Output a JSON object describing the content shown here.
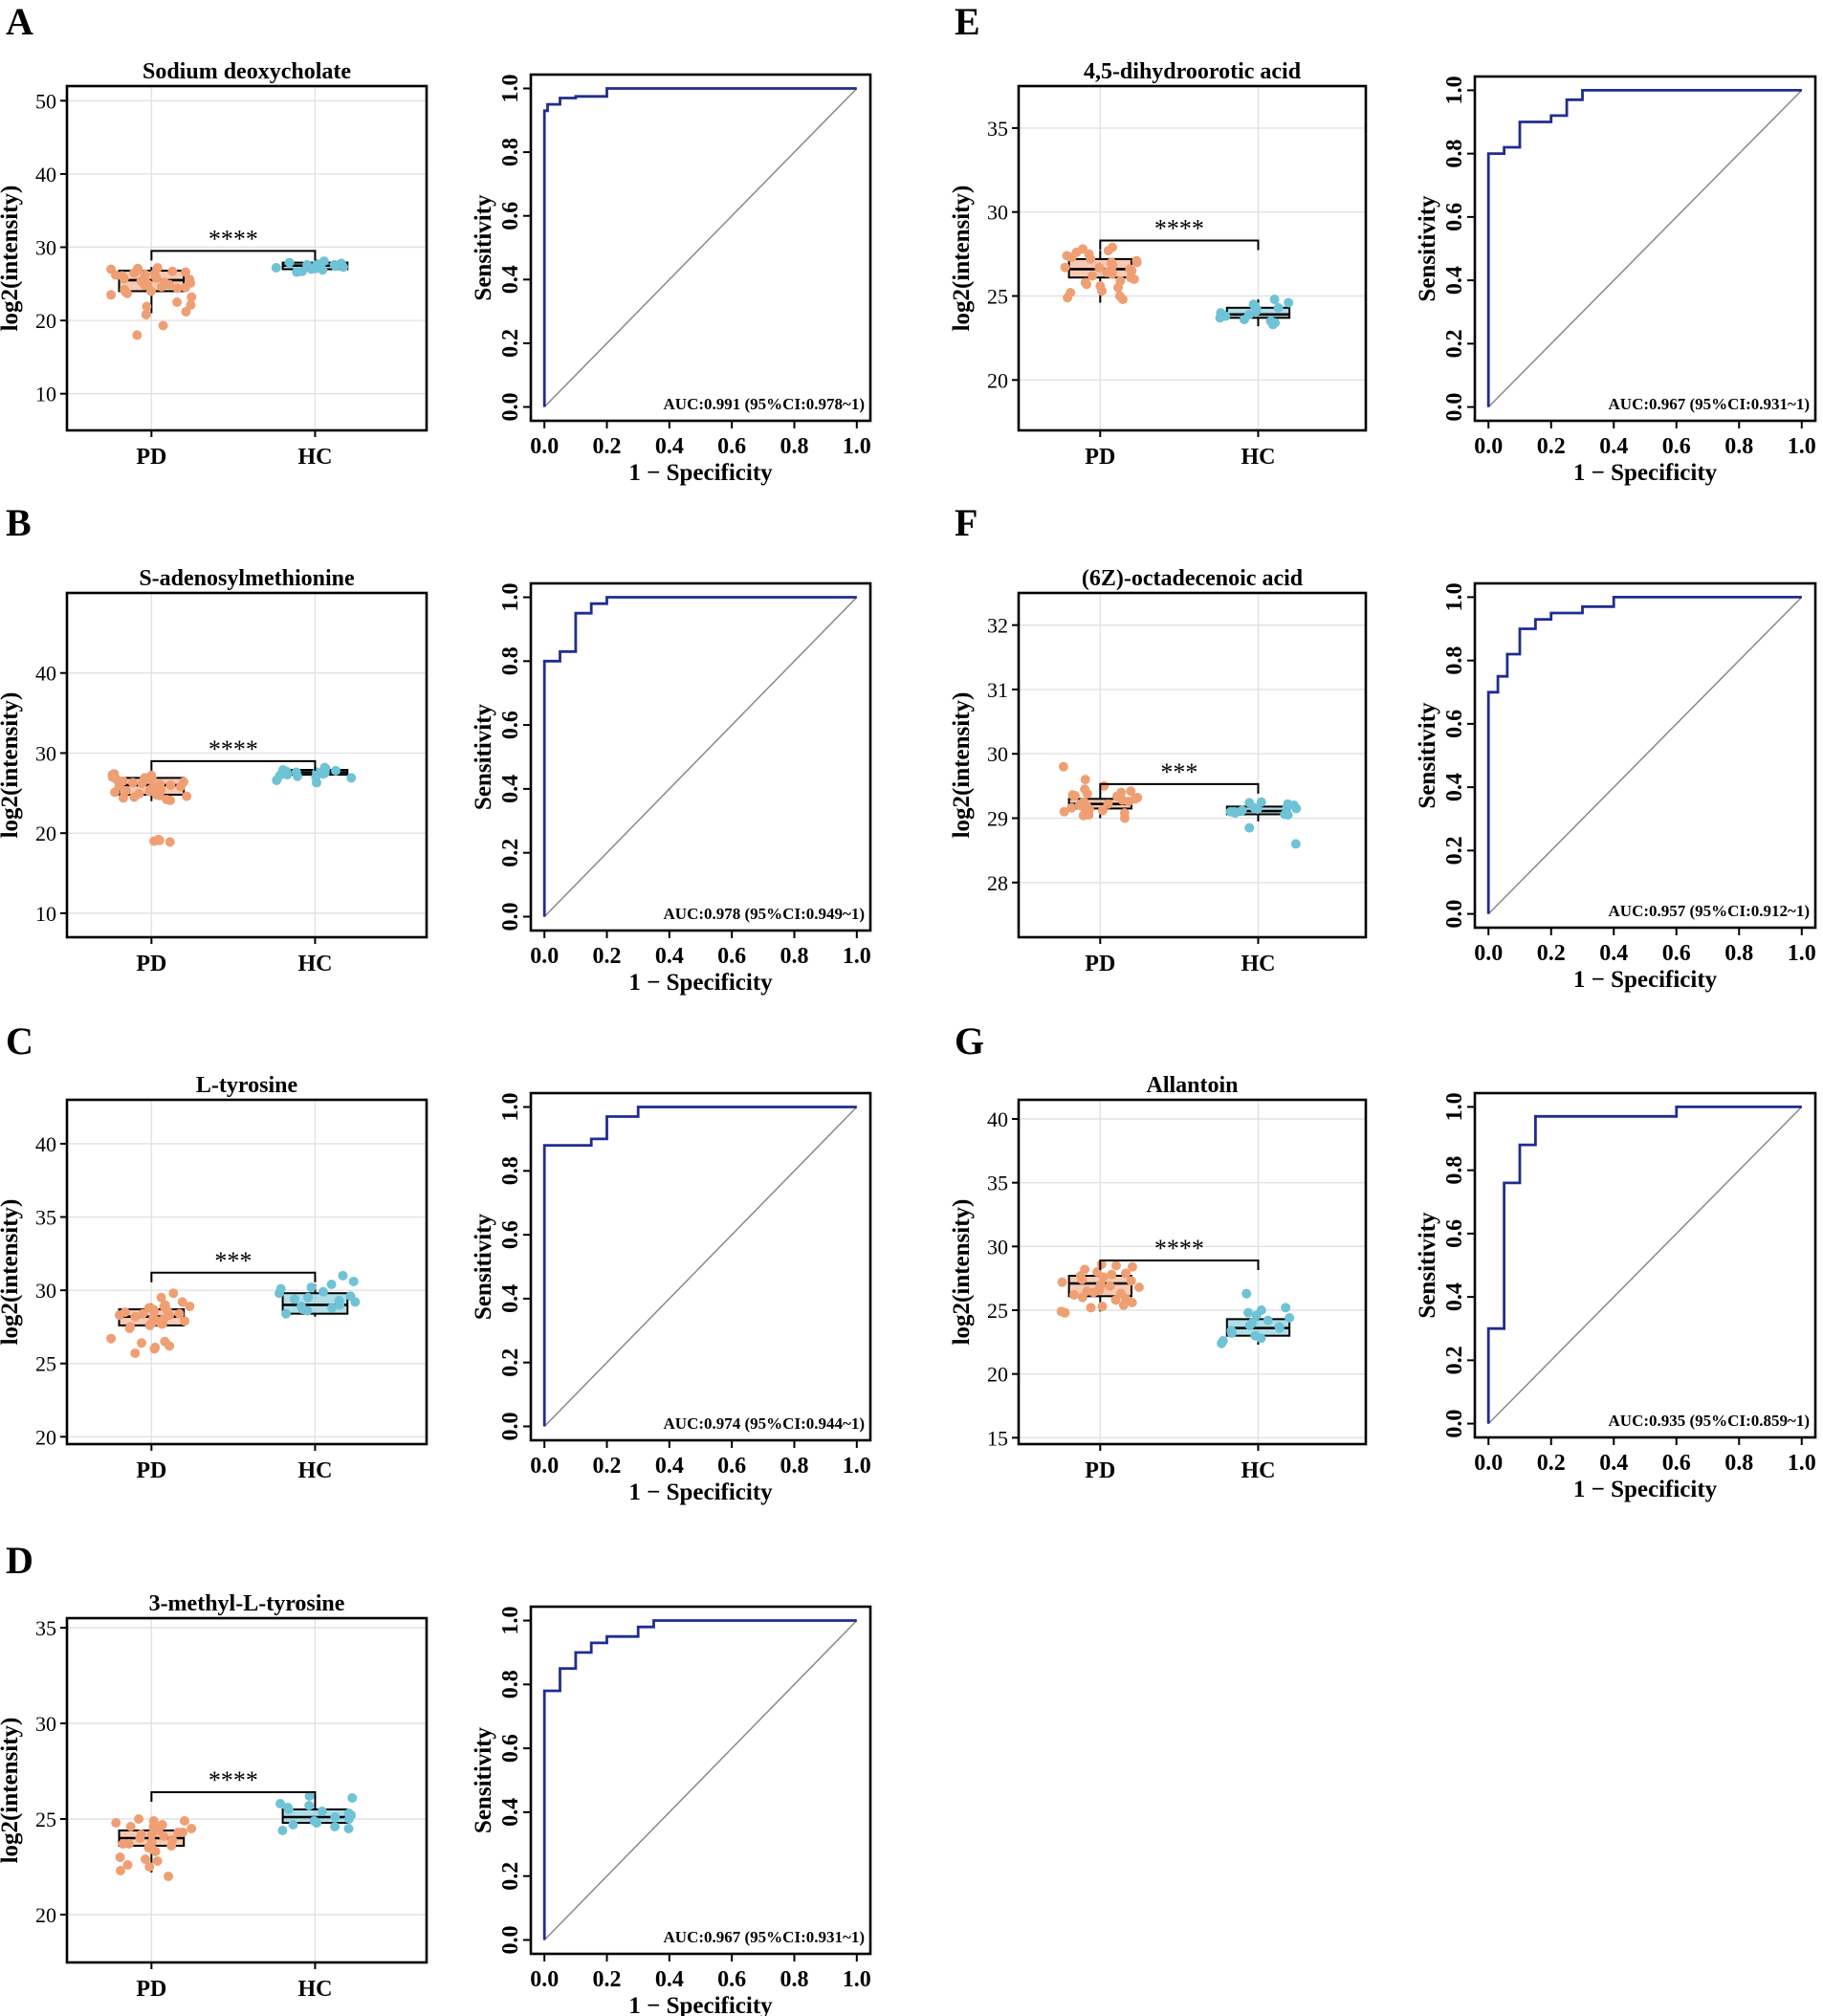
{
  "chart_data": [
    {
      "panel": "A",
      "type": "box",
      "title": "Sodium deoxycholate",
      "ylabel": "log2(intensity)",
      "categories": [
        "PD",
        "HC"
      ],
      "ylim": [
        5,
        52
      ],
      "yticks": [
        10,
        20,
        30,
        40,
        50
      ],
      "boxes": [
        {
          "group": "PD",
          "color": "#ef9f74",
          "q1": 24.0,
          "median": 25.5,
          "q3": 26.8,
          "whisker_low": 21.0,
          "whisker_high": 27.3,
          "points": [
            27.0,
            26.6,
            26.2,
            25.8,
            25.4,
            25.0,
            24.6,
            24.2,
            26.9,
            26.4,
            25.6,
            24.4,
            23.9,
            23.2,
            22.5,
            21.9,
            21.2,
            20.8,
            19.3,
            18.0,
            26.7,
            25.9,
            25.2,
            24.8,
            26.1,
            27.1,
            24.0,
            23.5,
            25.7,
            26.3,
            22.1,
            24.9,
            26.5,
            25.3,
            23.7,
            27.2,
            25.1,
            24.5
          ]
        },
        {
          "group": "HC",
          "color": "#6ec3d6",
          "q1": 27.0,
          "median": 27.5,
          "q3": 27.9,
          "whisker_low": 26.5,
          "whisker_high": 28.2,
          "points": [
            27.9,
            27.6,
            27.3,
            27.0,
            26.6,
            27.8,
            27.4,
            27.1,
            27.7,
            27.5,
            27.2,
            26.9,
            28.1,
            27.6,
            27.3,
            26.7
          ]
        }
      ],
      "bracket_y": 29.5,
      "significance": "****"
    },
    {
      "panel": "A",
      "type": "line",
      "subtype": "roc",
      "xlabel": "1 − Specificity",
      "ylabel": "Sensitivity",
      "xlim": [
        0,
        1
      ],
      "ylim": [
        0,
        1
      ],
      "ticks": [
        "0.0",
        "0.2",
        "0.4",
        "0.6",
        "0.8",
        "1.0"
      ],
      "x": [
        0,
        0,
        0.01,
        0.01,
        0.05,
        0.05,
        0.1,
        0.1,
        0.2,
        0.2,
        1
      ],
      "y": [
        0,
        0.93,
        0.93,
        0.95,
        0.95,
        0.97,
        0.97,
        0.975,
        0.975,
        1,
        1
      ],
      "auc_label": "AUC:0.991 (95%CI:0.978~1)"
    },
    {
      "panel": "B",
      "type": "box",
      "title": "S-adenosylmethionine",
      "ylabel": "log2(intensity)",
      "categories": [
        "PD",
        "HC"
      ],
      "ylim": [
        7,
        50
      ],
      "yticks": [
        10,
        20,
        30,
        40
      ],
      "boxes": [
        {
          "group": "PD",
          "color": "#ef9f74",
          "q1": 24.8,
          "median": 26.0,
          "q3": 26.9,
          "whisker_low": 24.0,
          "whisker_high": 27.5,
          "points": [
            27.2,
            26.8,
            26.4,
            26.0,
            25.6,
            25.2,
            24.8,
            24.4,
            26.9,
            26.3,
            25.5,
            24.6,
            27.4,
            25.9,
            25.1,
            24.2,
            26.6,
            25.3,
            24.9,
            27.0,
            26.1,
            25.7,
            24.1,
            26.5,
            25.0,
            19.2,
            19.0,
            19.1,
            18.9,
            26.7,
            25.4,
            27.3,
            24.5,
            26.2,
            25.8,
            24.7
          ]
        },
        {
          "group": "HC",
          "color": "#6ec3d6",
          "q1": 27.3,
          "median": 27.6,
          "q3": 27.9,
          "whisker_low": 27.0,
          "whisker_high": 28.3,
          "points": [
            28.2,
            27.9,
            27.6,
            27.3,
            27.0,
            27.8,
            27.5,
            27.2,
            26.6,
            26.3,
            27.7,
            27.4,
            28.1,
            27.1,
            27.6,
            26.9
          ]
        }
      ],
      "bracket_y": 29.0,
      "significance": "****"
    },
    {
      "panel": "B",
      "type": "line",
      "subtype": "roc",
      "xlabel": "1 − Specificity",
      "ylabel": "Sensitivity",
      "xlim": [
        0,
        1
      ],
      "ylim": [
        0,
        1
      ],
      "ticks": [
        "0.0",
        "0.2",
        "0.4",
        "0.6",
        "0.8",
        "1.0"
      ],
      "x": [
        0,
        0,
        0.05,
        0.05,
        0.1,
        0.1,
        0.15,
        0.15,
        0.2,
        0.2,
        1
      ],
      "y": [
        0,
        0.8,
        0.8,
        0.83,
        0.83,
        0.95,
        0.95,
        0.98,
        0.98,
        1,
        1
      ],
      "auc_label": "AUC:0.978 (95%CI:0.949~1)"
    },
    {
      "panel": "C",
      "type": "box",
      "title": "L-tyrosine",
      "ylabel": "log2(intensity)",
      "categories": [
        "PD",
        "HC"
      ],
      "ylim": [
        19.5,
        43
      ],
      "yticks": [
        20,
        25,
        30,
        35,
        40
      ],
      "boxes": [
        {
          "group": "PD",
          "color": "#ef9f74",
          "q1": 27.6,
          "median": 28.2,
          "q3": 28.7,
          "whisker_low": 27.3,
          "whisker_high": 29.1,
          "points": [
            29.0,
            28.7,
            28.4,
            28.1,
            27.8,
            27.5,
            28.9,
            28.5,
            28.2,
            27.9,
            27.6,
            28.8,
            28.3,
            27.7,
            29.2,
            28.0,
            27.4,
            28.6,
            29.8,
            29.5,
            28.9,
            26.7,
            26.4,
            26.2,
            26.0,
            25.7,
            26.5,
            26.1,
            28.4,
            27.9,
            28.6,
            27.7,
            28.3
          ]
        },
        {
          "group": "HC",
          "color": "#6ec3d6",
          "q1": 28.4,
          "median": 29.0,
          "q3": 29.8,
          "whisker_low": 28.2,
          "whisker_high": 30.4,
          "points": [
            30.6,
            30.2,
            29.9,
            29.6,
            29.3,
            29.0,
            28.7,
            28.4,
            30.4,
            29.8,
            29.2,
            28.8,
            31.0,
            29.5,
            28.6,
            30.1,
            29.4,
            28.9
          ]
        }
      ],
      "bracket_y": 31.2,
      "significance": "***"
    },
    {
      "panel": "C",
      "type": "line",
      "subtype": "roc",
      "xlabel": "1 − Specificity",
      "ylabel": "Sensitivity",
      "xlim": [
        0,
        1
      ],
      "ylim": [
        0,
        1
      ],
      "ticks": [
        "0.0",
        "0.2",
        "0.4",
        "0.6",
        "0.8",
        "1.0"
      ],
      "x": [
        0,
        0,
        0.15,
        0.15,
        0.2,
        0.2,
        0.3,
        0.3,
        1
      ],
      "y": [
        0,
        0.88,
        0.88,
        0.9,
        0.9,
        0.97,
        0.97,
        1,
        1
      ],
      "auc_label": "AUC:0.974 (95%CI:0.944~1)"
    },
    {
      "panel": "D",
      "type": "box",
      "title": "3-methyl-L-tyrosine",
      "ylabel": "log2(intensity)",
      "categories": [
        "PD",
        "HC"
      ],
      "ylim": [
        17.5,
        35.5
      ],
      "yticks": [
        20,
        25,
        30,
        35
      ],
      "boxes": [
        {
          "group": "PD",
          "color": "#ef9f74",
          "q1": 23.6,
          "median": 24.0,
          "q3": 24.4,
          "whisker_low": 22.2,
          "whisker_high": 24.9,
          "points": [
            24.9,
            24.6,
            24.3,
            24.0,
            23.7,
            23.4,
            24.8,
            24.5,
            24.2,
            23.9,
            23.6,
            24.7,
            24.1,
            23.8,
            25.0,
            24.4,
            23.5,
            24.6,
            23.3,
            22.9,
            22.6,
            22.3,
            22.0,
            22.8,
            22.5,
            23.0,
            24.2,
            23.7,
            24.9,
            24.3
          ]
        },
        {
          "group": "HC",
          "color": "#6ec3d6",
          "q1": 24.8,
          "median": 25.1,
          "q3": 25.5,
          "whisker_low": 24.6,
          "whisker_high": 25.9,
          "points": [
            26.2,
            25.8,
            25.5,
            25.2,
            24.9,
            24.6,
            24.4,
            25.6,
            25.3,
            25.0,
            24.7,
            26.1,
            25.4,
            24.5,
            25.1,
            25.7,
            24.8
          ]
        }
      ],
      "bracket_y": 26.4,
      "significance": "****"
    },
    {
      "panel": "D",
      "type": "line",
      "subtype": "roc",
      "xlabel": "1 − Specificity",
      "ylabel": "Sensitivity",
      "xlim": [
        0,
        1
      ],
      "ylim": [
        0,
        1
      ],
      "ticks": [
        "0.0",
        "0.2",
        "0.4",
        "0.6",
        "0.8",
        "1.0"
      ],
      "x": [
        0,
        0,
        0.05,
        0.05,
        0.1,
        0.1,
        0.15,
        0.15,
        0.2,
        0.2,
        0.3,
        0.3,
        0.35,
        0.35,
        1
      ],
      "y": [
        0,
        0.78,
        0.78,
        0.85,
        0.85,
        0.9,
        0.9,
        0.93,
        0.93,
        0.95,
        0.95,
        0.98,
        0.98,
        1,
        1
      ],
      "auc_label": "AUC:0.967 (95%CI:0.931~1)"
    },
    {
      "panel": "E",
      "type": "box",
      "title": "4,5-dihydroorotic acid",
      "ylabel": "log2(intensity)",
      "categories": [
        "PD",
        "HC"
      ],
      "ylim": [
        17,
        37.5
      ],
      "yticks": [
        20,
        25,
        30,
        35
      ],
      "boxes": [
        {
          "group": "PD",
          "color": "#ef9f74",
          "q1": 26.1,
          "median": 26.6,
          "q3": 27.2,
          "whisker_low": 24.6,
          "whisker_high": 27.7,
          "points": [
            27.9,
            27.6,
            27.3,
            27.0,
            26.7,
            26.4,
            26.1,
            25.8,
            25.5,
            27.8,
            27.2,
            26.6,
            26.0,
            25.3,
            24.8,
            27.4,
            26.8,
            26.2,
            25.6,
            25.0,
            27.1,
            26.5,
            25.9,
            24.9,
            27.5,
            26.3,
            25.7,
            26.9,
            27.7,
            25.2,
            26.7,
            27.0,
            26.4
          ]
        },
        {
          "group": "HC",
          "color": "#6ec3d6",
          "q1": 23.7,
          "median": 23.9,
          "q3": 24.3,
          "whisker_low": 23.2,
          "whisker_high": 24.8,
          "points": [
            24.8,
            24.5,
            24.2,
            23.9,
            23.6,
            23.3,
            24.4,
            24.1,
            23.8,
            23.5,
            24.6,
            23.7,
            24.0,
            23.4,
            24.3
          ]
        }
      ],
      "bracket_y": 28.3,
      "significance": "****"
    },
    {
      "panel": "E",
      "type": "line",
      "subtype": "roc",
      "xlabel": "1 − Specificity",
      "ylabel": "Sensitivity",
      "xlim": [
        0,
        1
      ],
      "ylim": [
        0,
        1
      ],
      "ticks": [
        "0.0",
        "0.2",
        "0.4",
        "0.6",
        "0.8",
        "1.0"
      ],
      "x": [
        0,
        0,
        0.05,
        0.05,
        0.1,
        0.1,
        0.2,
        0.2,
        0.25,
        0.25,
        0.3,
        0.3,
        1
      ],
      "y": [
        0,
        0.8,
        0.8,
        0.82,
        0.82,
        0.9,
        0.9,
        0.92,
        0.92,
        0.97,
        0.97,
        1,
        1
      ],
      "auc_label": "AUC:0.967 (95%CI:0.931~1)"
    },
    {
      "panel": "F",
      "type": "box",
      "title": "(6Z)-octadecenoic acid",
      "ylabel": "log2(intensity)",
      "categories": [
        "PD",
        "HC"
      ],
      "ylim": [
        27.15,
        32.5
      ],
      "yticks": [
        28,
        29,
        30,
        31,
        32
      ],
      "boxes": [
        {
          "group": "PD",
          "color": "#ef9f74",
          "q1": 29.15,
          "median": 29.22,
          "q3": 29.3,
          "whisker_low": 29.0,
          "whisker_high": 29.4,
          "points": [
            29.45,
            29.4,
            29.35,
            29.3,
            29.25,
            29.2,
            29.15,
            29.1,
            29.05,
            29.0,
            29.38,
            29.28,
            29.18,
            29.08,
            29.32,
            29.22,
            29.12,
            29.42,
            29.26,
            29.16,
            29.8,
            29.6,
            29.5,
            29.34,
            29.24,
            29.14,
            29.04,
            29.36
          ]
        },
        {
          "group": "HC",
          "color": "#6ec3d6",
          "q1": 29.06,
          "median": 29.11,
          "q3": 29.18,
          "whisker_low": 28.95,
          "whisker_high": 29.22,
          "points": [
            29.25,
            29.2,
            29.15,
            29.1,
            29.05,
            29.22,
            29.12,
            29.18,
            29.08,
            29.14,
            29.24,
            29.16,
            29.06,
            28.85,
            28.6,
            29.1
          ]
        }
      ],
      "bracket_y": 29.53,
      "significance": "***"
    },
    {
      "panel": "F",
      "type": "line",
      "subtype": "roc",
      "xlabel": "1 − Specificity",
      "ylabel": "Sensitivity",
      "xlim": [
        0,
        1
      ],
      "ylim": [
        0,
        1
      ],
      "ticks": [
        "0.0",
        "0.2",
        "0.4",
        "0.6",
        "0.8",
        "1.0"
      ],
      "x": [
        0,
        0,
        0.03,
        0.03,
        0.06,
        0.06,
        0.1,
        0.1,
        0.15,
        0.15,
        0.2,
        0.2,
        0.3,
        0.3,
        0.4,
        0.4,
        1
      ],
      "y": [
        0,
        0.7,
        0.7,
        0.75,
        0.75,
        0.82,
        0.82,
        0.9,
        0.9,
        0.93,
        0.93,
        0.95,
        0.95,
        0.97,
        0.97,
        1,
        1
      ],
      "auc_label": "AUC:0.957 (95%CI:0.912~1)"
    },
    {
      "panel": "G",
      "type": "box",
      "title": "Allantoin",
      "ylabel": "log2(intensity)",
      "categories": [
        "PD",
        "HC"
      ],
      "ylim": [
        14.5,
        41.5
      ],
      "yticks": [
        15,
        20,
        25,
        30,
        35,
        40
      ],
      "boxes": [
        {
          "group": "PD",
          "color": "#ef9f74",
          "q1": 26.1,
          "median": 27.1,
          "q3": 27.7,
          "whisker_low": 24.9,
          "whisker_high": 28.6,
          "points": [
            28.6,
            28.2,
            27.8,
            27.4,
            27.0,
            26.6,
            26.2,
            25.8,
            25.4,
            28.4,
            27.6,
            26.8,
            26.0,
            25.2,
            24.9,
            28.0,
            27.2,
            26.4,
            25.6,
            27.9,
            26.9,
            25.9,
            28.5,
            27.3,
            26.3,
            25.3,
            27.7,
            26.5,
            24.8,
            26.7
          ]
        },
        {
          "group": "HC",
          "color": "#6ec3d6",
          "q1": 23.0,
          "median": 23.6,
          "q3": 24.3,
          "whisker_low": 22.3,
          "whisker_high": 25.0,
          "points": [
            26.3,
            25.2,
            24.8,
            24.4,
            24.0,
            23.6,
            23.2,
            22.8,
            22.4,
            24.6,
            23.8,
            23.0,
            22.6,
            24.2,
            23.4,
            25.0,
            23.7
          ]
        }
      ],
      "bracket_y": 28.9,
      "significance": "****"
    },
    {
      "panel": "G",
      "type": "line",
      "subtype": "roc",
      "xlabel": "1 − Specificity",
      "ylabel": "Sensitivity",
      "xlim": [
        0,
        1
      ],
      "ylim": [
        0,
        1
      ],
      "ticks": [
        "0.0",
        "0.2",
        "0.4",
        "0.6",
        "0.8",
        "1.0"
      ],
      "x": [
        0,
        0,
        0.05,
        0.05,
        0.1,
        0.1,
        0.15,
        0.15,
        0.6,
        0.6,
        1
      ],
      "y": [
        0,
        0.3,
        0.3,
        0.76,
        0.76,
        0.88,
        0.88,
        0.97,
        0.97,
        1,
        1
      ],
      "auc_label": "AUC:0.935 (95%CI:0.859~1)"
    }
  ],
  "colors": {
    "pd": "#ef9f74",
    "hc": "#6ec3d6",
    "roc": "#1f2d8f",
    "diagonal": "#888888"
  }
}
